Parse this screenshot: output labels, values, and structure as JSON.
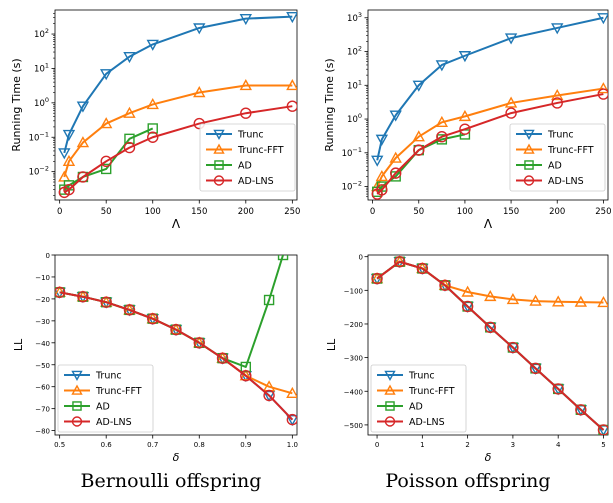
{
  "colors": {
    "trunc": "#1f77b4",
    "trunc_fft": "#ff7f0e",
    "ad": "#2ca02c",
    "ad_lns": "#d62728"
  },
  "captions": {
    "left": "Bernoulli offspring",
    "right": "Poisson offspring"
  },
  "chart_data": [
    {
      "id": "bernoulli-runtime",
      "type": "line",
      "xlabel": "Λ",
      "ylabel": "Running Time (s)",
      "yscale": "log",
      "xlim": [
        -5,
        255
      ],
      "ylim": [
        0.0015,
        500
      ],
      "xticks": [
        0,
        50,
        100,
        150,
        200,
        250
      ],
      "yticks": [
        {
          "v": 0.01,
          "b": "10",
          "e": "−2"
        },
        {
          "v": 0.1,
          "b": "10",
          "e": "−1"
        },
        {
          "v": 1,
          "b": "10",
          "e": "0"
        },
        {
          "v": 10,
          "b": "10",
          "e": "1"
        },
        {
          "v": 100,
          "b": "10",
          "e": "2"
        }
      ],
      "legend": "lower-right",
      "series": [
        {
          "name": "Trunc",
          "marker": "triangle-down",
          "color": "#1f77b4",
          "x": [
            5,
            10,
            25,
            50,
            75,
            100,
            150,
            200,
            250
          ],
          "y": [
            0.035,
            0.12,
            0.8,
            7,
            22,
            50,
            150,
            280,
            320
          ]
        },
        {
          "name": "Trunc-FFT",
          "marker": "triangle-up",
          "color": "#ff7f0e",
          "x": [
            5,
            10,
            25,
            50,
            75,
            100,
            150,
            200,
            250
          ],
          "y": [
            0.007,
            0.02,
            0.07,
            0.25,
            0.5,
            0.9,
            2.0,
            3.2,
            3.2
          ]
        },
        {
          "name": "AD",
          "marker": "square",
          "color": "#2ca02c",
          "x": [
            5,
            10,
            25,
            50,
            75,
            100
          ],
          "y": [
            0.003,
            0.004,
            0.007,
            0.012,
            0.09,
            0.18
          ]
        },
        {
          "name": "AD-LNS",
          "marker": "circle",
          "color": "#d62728",
          "x": [
            5,
            10,
            25,
            50,
            75,
            100,
            150,
            200,
            250
          ],
          "y": [
            0.0025,
            0.003,
            0.007,
            0.02,
            0.05,
            0.1,
            0.25,
            0.5,
            0.8
          ]
        }
      ]
    },
    {
      "id": "poisson-runtime",
      "type": "line",
      "xlabel": "Λ",
      "ylabel": "Running Time (s)",
      "yscale": "log",
      "xlim": [
        -5,
        255
      ],
      "ylim": [
        0.004,
        1700
      ],
      "xticks": [
        0,
        50,
        100,
        150,
        200,
        250
      ],
      "yticks": [
        {
          "v": 0.01,
          "b": "10",
          "e": "−2"
        },
        {
          "v": 0.1,
          "b": "10",
          "e": "−1"
        },
        {
          "v": 1,
          "b": "10",
          "e": "0"
        },
        {
          "v": 10,
          "b": "10",
          "e": "1"
        },
        {
          "v": 100,
          "b": "10",
          "e": "2"
        },
        {
          "v": 1000,
          "b": "10",
          "e": "3"
        }
      ],
      "legend": "lower-right",
      "series": [
        {
          "name": "Trunc",
          "marker": "triangle-down",
          "color": "#1f77b4",
          "x": [
            5,
            10,
            25,
            50,
            75,
            100,
            150,
            200,
            250
          ],
          "y": [
            0.06,
            0.25,
            1.3,
            10,
            40,
            75,
            250,
            500,
            1000
          ]
        },
        {
          "name": "Trunc-FFT",
          "marker": "triangle-up",
          "color": "#ff7f0e",
          "x": [
            5,
            10,
            25,
            50,
            75,
            100,
            150,
            200,
            250
          ],
          "y": [
            0.01,
            0.02,
            0.07,
            0.3,
            0.8,
            1.2,
            3,
            5,
            8
          ]
        },
        {
          "name": "AD",
          "marker": "square",
          "color": "#2ca02c",
          "x": [
            5,
            10,
            25,
            50,
            75,
            100
          ],
          "y": [
            0.007,
            0.01,
            0.02,
            0.12,
            0.25,
            0.35
          ]
        },
        {
          "name": "AD-LNS",
          "marker": "circle",
          "color": "#d62728",
          "x": [
            5,
            10,
            25,
            50,
            75,
            100,
            150,
            200,
            250
          ],
          "y": [
            0.006,
            0.008,
            0.025,
            0.12,
            0.3,
            0.5,
            1.5,
            3,
            5.5
          ]
        }
      ]
    },
    {
      "id": "bernoulli-ll",
      "type": "line",
      "xlabel": "δ",
      "ylabel": "LL",
      "yscale": "linear",
      "xlim": [
        0.49,
        1.01
      ],
      "ylim": [
        -82,
        0
      ],
      "xticks": [
        {
          "v": 0.5,
          "t": "0.5"
        },
        {
          "v": 0.6,
          "t": "0.6"
        },
        {
          "v": 0.7,
          "t": "0.7"
        },
        {
          "v": 0.8,
          "t": "0.8"
        },
        {
          "v": 0.9,
          "t": "0.9"
        },
        {
          "v": 1.0,
          "t": "1.0"
        }
      ],
      "yticks": [
        {
          "v": 0,
          "t": "0"
        },
        {
          "v": -10,
          "t": "−10"
        },
        {
          "v": -20,
          "t": "−20"
        },
        {
          "v": -30,
          "t": "−30"
        },
        {
          "v": -40,
          "t": "−40"
        },
        {
          "v": -50,
          "t": "−50"
        },
        {
          "v": -60,
          "t": "−60"
        },
        {
          "v": -70,
          "t": "−70"
        },
        {
          "v": -80,
          "t": "−80"
        }
      ],
      "legend": "lower-left",
      "series": [
        {
          "name": "Trunc",
          "marker": "triangle-down",
          "color": "#1f77b4",
          "x": [
            0.5,
            0.55,
            0.6,
            0.65,
            0.7,
            0.75,
            0.8,
            0.85,
            0.9,
            0.95,
            1.0
          ],
          "y": [
            -17,
            -19,
            -21.5,
            -25,
            -29,
            -34,
            -40,
            -47,
            -55,
            -64,
            -75
          ]
        },
        {
          "name": "Trunc-FFT",
          "marker": "triangle-up",
          "color": "#ff7f0e",
          "x": [
            0.5,
            0.55,
            0.6,
            0.65,
            0.7,
            0.75,
            0.8,
            0.85,
            0.9,
            0.95,
            1.0
          ],
          "y": [
            -17,
            -19,
            -21.5,
            -25,
            -29,
            -34,
            -40,
            -47,
            -55,
            -60,
            -63
          ]
        },
        {
          "name": "AD",
          "marker": "square",
          "color": "#2ca02c",
          "x": [
            0.5,
            0.55,
            0.6,
            0.65,
            0.7,
            0.75,
            0.8,
            0.85,
            0.9,
            0.95,
            0.98
          ],
          "y": [
            -17,
            -19,
            -21.5,
            -25,
            -29,
            -34,
            -40,
            -47,
            -51,
            -20.5,
            0
          ]
        },
        {
          "name": "AD-LNS",
          "marker": "circle",
          "color": "#d62728",
          "x": [
            0.5,
            0.55,
            0.6,
            0.65,
            0.7,
            0.75,
            0.8,
            0.85,
            0.9,
            0.95,
            1.0
          ],
          "y": [
            -17,
            -19,
            -21.5,
            -25,
            -29,
            -34,
            -40,
            -47,
            -55,
            -64,
            -75
          ]
        }
      ]
    },
    {
      "id": "poisson-ll",
      "type": "line",
      "xlabel": "δ",
      "ylabel": "LL",
      "yscale": "linear",
      "xlim": [
        -0.2,
        5.1
      ],
      "ylim": [
        -530,
        5
      ],
      "xticks": [
        {
          "v": 0,
          "t": "0"
        },
        {
          "v": 1,
          "t": "1"
        },
        {
          "v": 2,
          "t": "2"
        },
        {
          "v": 3,
          "t": "3"
        },
        {
          "v": 4,
          "t": "4"
        },
        {
          "v": 5,
          "t": "5"
        }
      ],
      "yticks": [
        {
          "v": 0,
          "t": "0"
        },
        {
          "v": -100,
          "t": "−100"
        },
        {
          "v": -200,
          "t": "−200"
        },
        {
          "v": -300,
          "t": "−300"
        },
        {
          "v": -400,
          "t": "−400"
        },
        {
          "v": -500,
          "t": "−500"
        }
      ],
      "legend": "lower-left",
      "series": [
        {
          "name": "Trunc",
          "marker": "triangle-down",
          "color": "#1f77b4",
          "x": [
            0,
            0.5,
            1,
            1.5,
            2,
            2.5,
            3,
            3.5,
            4,
            4.5,
            5
          ],
          "y": [
            -65,
            -15,
            -35,
            -85,
            -148,
            -210,
            -270,
            -332,
            -393,
            -455,
            -515
          ]
        },
        {
          "name": "Trunc-FFT",
          "marker": "triangle-up",
          "color": "#ff7f0e",
          "x": [
            0,
            0.5,
            1,
            1.5,
            2,
            2.5,
            3,
            3.5,
            4,
            4.5,
            5
          ],
          "y": [
            -65,
            -15,
            -35,
            -85,
            -105,
            -118,
            -127,
            -132,
            -134,
            -135,
            -136
          ]
        },
        {
          "name": "AD",
          "marker": "square",
          "color": "#2ca02c",
          "x": [
            0,
            0.5,
            1,
            1.5,
            2,
            2.5,
            3,
            3.5,
            4,
            4.5,
            5
          ],
          "y": [
            -65,
            -15,
            -35,
            -85,
            -148,
            -210,
            -270,
            -332,
            -393,
            -455,
            -515
          ]
        },
        {
          "name": "AD-LNS",
          "marker": "circle",
          "color": "#d62728",
          "x": [
            0,
            0.5,
            1,
            1.5,
            2,
            2.5,
            3,
            3.5,
            4,
            4.5,
            5
          ],
          "y": [
            -65,
            -15,
            -35,
            -85,
            -148,
            -210,
            -270,
            -332,
            -393,
            -455,
            -515
          ]
        }
      ]
    }
  ]
}
